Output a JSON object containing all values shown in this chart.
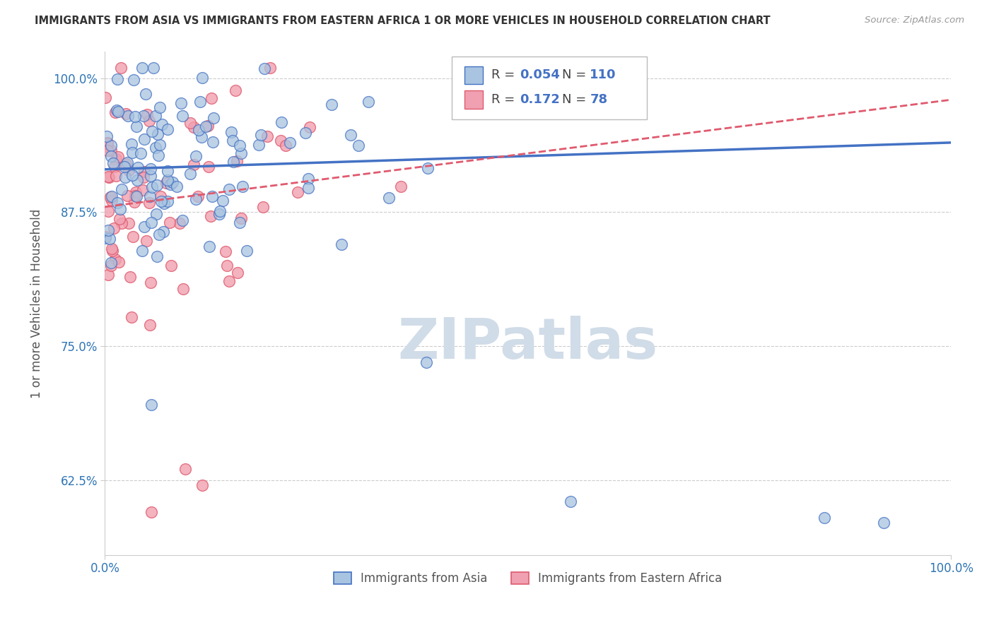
{
  "title": "IMMIGRANTS FROM ASIA VS IMMIGRANTS FROM EASTERN AFRICA 1 OR MORE VEHICLES IN HOUSEHOLD CORRELATION CHART",
  "source": "Source: ZipAtlas.com",
  "ylabel": "1 or more Vehicles in Household",
  "xlim": [
    0.0,
    1.0
  ],
  "ylim": [
    0.555,
    1.025
  ],
  "yticks": [
    0.625,
    0.75,
    0.875,
    1.0
  ],
  "ytick_labels": [
    "62.5%",
    "75.0%",
    "87.5%",
    "100.0%"
  ],
  "xticks": [
    0.0,
    1.0
  ],
  "xtick_labels": [
    "0.0%",
    "100.0%"
  ],
  "legend_entries": [
    {
      "label": "Immigrants from Asia",
      "color": "#aec6e8"
    },
    {
      "label": "Immigrants from Eastern Africa",
      "color": "#f4a0b0"
    }
  ],
  "R_asia": 0.054,
  "N_asia": 110,
  "R_africa": 0.172,
  "N_africa": 78,
  "blue_color": "#4472c4",
  "pink_color": "#e05a6e",
  "blue_light": "#a8c4e0",
  "pink_light": "#f0a0b0",
  "watermark": "ZIPatlas",
  "watermark_color": "#d0dce8",
  "background_color": "#ffffff",
  "grid_color": "#cccccc",
  "title_color": "#333333",
  "axis_label_color": "#555555",
  "tick_color": "#2e75b6",
  "seed": 7
}
